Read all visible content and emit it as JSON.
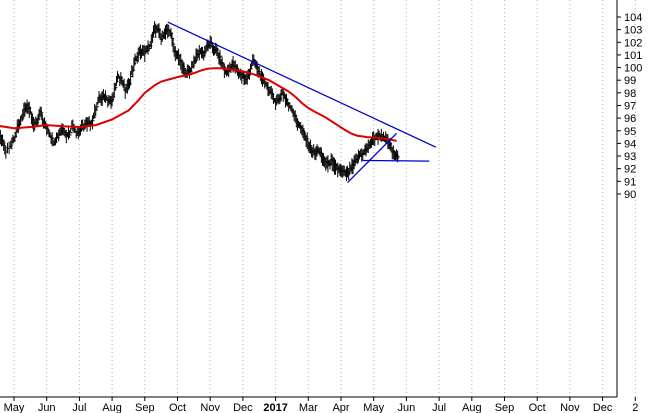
{
  "chart_data": {
    "type": "line",
    "title": "",
    "xlabel": "",
    "ylabel": "",
    "ylim": [
      89.5,
      104.8
    ],
    "grid": "vertical dotted lines at month boundaries",
    "y_ticks": [
      "90",
      "91",
      "92",
      "93",
      "94",
      "95",
      "96",
      "97",
      "98",
      "99",
      "100",
      "101",
      "102",
      "103",
      "104"
    ],
    "x_ticks": [
      "May",
      "Jun",
      "Jul",
      "Aug",
      "Sep",
      "Oct",
      "Nov",
      "Dec",
      "2017",
      "Mar",
      "Apr",
      "May",
      "Jun",
      "Jul",
      "Aug",
      "Sep",
      "Oct",
      "Nov",
      "Dec",
      "2"
    ],
    "x_ticks_bold": [
      false,
      false,
      false,
      false,
      false,
      false,
      false,
      false,
      true,
      false,
      false,
      false,
      false,
      false,
      false,
      false,
      false,
      false,
      false,
      false
    ],
    "colors": {
      "price": "#000000",
      "moving_average": "#dd0000",
      "trendlines": "#0000cc",
      "grid": "#b0b0b0",
      "axis": "#000000"
    },
    "series": [
      {
        "style": "price bars",
        "points": [
          [
            -1.4,
            94.0
          ],
          [
            -1.2,
            95.1
          ],
          [
            -1.0,
            95.5
          ],
          [
            -0.8,
            95.0
          ],
          [
            -0.6,
            95.3
          ],
          [
            -0.45,
            94.5
          ],
          [
            -0.35,
            94.2
          ],
          [
            -0.25,
            93.3
          ],
          [
            -0.1,
            94.0
          ],
          [
            0.0,
            94.4
          ],
          [
            0.1,
            95.2
          ],
          [
            0.2,
            95.8
          ],
          [
            0.3,
            96.5
          ],
          [
            0.4,
            96.9
          ],
          [
            0.5,
            96.5
          ],
          [
            0.6,
            95.5
          ],
          [
            0.7,
            95.8
          ],
          [
            0.8,
            96.7
          ],
          [
            0.9,
            95.5
          ],
          [
            1.0,
            95.3
          ],
          [
            1.1,
            94.7
          ],
          [
            1.2,
            94.1
          ],
          [
            1.3,
            94.4
          ],
          [
            1.4,
            94.9
          ],
          [
            1.5,
            95.3
          ],
          [
            1.6,
            94.6
          ],
          [
            1.7,
            94.8
          ],
          [
            1.8,
            95.5
          ],
          [
            1.9,
            94.8
          ],
          [
            2.0,
            95.0
          ],
          [
            2.1,
            95.3
          ],
          [
            2.2,
            95.5
          ],
          [
            2.3,
            95.5
          ],
          [
            2.4,
            95.8
          ],
          [
            2.5,
            96.8
          ],
          [
            2.6,
            97.5
          ],
          [
            2.7,
            97.6
          ],
          [
            2.8,
            97.7
          ],
          [
            2.9,
            97.4
          ],
          [
            3.0,
            97.3
          ],
          [
            3.1,
            98.5
          ],
          [
            3.2,
            99.3
          ],
          [
            3.3,
            99.0
          ],
          [
            3.4,
            98.2
          ],
          [
            3.5,
            98.6
          ],
          [
            3.6,
            99.6
          ],
          [
            3.7,
            100.5
          ],
          [
            3.8,
            101.0
          ],
          [
            3.9,
            101.3
          ],
          [
            4.0,
            101.1
          ],
          [
            4.1,
            101.5
          ],
          [
            4.2,
            102.1
          ],
          [
            4.3,
            103.0
          ],
          [
            4.4,
            103.1
          ],
          [
            4.5,
            102.4
          ],
          [
            4.6,
            102.7
          ],
          [
            4.7,
            103.0
          ],
          [
            4.8,
            102.6
          ],
          [
            4.9,
            101.3
          ],
          [
            5.0,
            101.0
          ],
          [
            5.1,
            100.4
          ],
          [
            5.2,
            99.8
          ],
          [
            5.3,
            99.6
          ],
          [
            5.4,
            99.8
          ],
          [
            5.5,
            100.5
          ],
          [
            5.6,
            101.0
          ],
          [
            5.7,
            101.3
          ],
          [
            5.8,
            101.1
          ],
          [
            5.9,
            101.6
          ],
          [
            6.0,
            101.9
          ],
          [
            6.1,
            101.5
          ],
          [
            6.2,
            101.3
          ],
          [
            6.3,
            100.7
          ],
          [
            6.4,
            100.0
          ],
          [
            6.5,
            99.5
          ],
          [
            6.6,
            100.0
          ],
          [
            6.7,
            100.3
          ],
          [
            6.8,
            99.8
          ],
          [
            6.9,
            99.5
          ],
          [
            7.0,
            99.3
          ],
          [
            7.1,
            99.0
          ],
          [
            7.2,
            99.7
          ],
          [
            7.3,
            100.5
          ],
          [
            7.4,
            100.1
          ],
          [
            7.5,
            99.6
          ],
          [
            7.6,
            99.0
          ],
          [
            7.7,
            98.7
          ],
          [
            7.8,
            98.2
          ],
          [
            7.9,
            97.7
          ],
          [
            8.0,
            97.3
          ],
          [
            8.1,
            97.5
          ],
          [
            8.2,
            98.0
          ],
          [
            8.3,
            97.5
          ],
          [
            8.4,
            97.0
          ],
          [
            8.5,
            96.7
          ],
          [
            8.6,
            96.0
          ],
          [
            8.7,
            95.5
          ],
          [
            8.8,
            95.0
          ],
          [
            8.9,
            94.5
          ],
          [
            9.0,
            94.0
          ],
          [
            9.1,
            93.5
          ],
          [
            9.2,
            93.2
          ],
          [
            9.3,
            93.5
          ],
          [
            9.4,
            93.0
          ],
          [
            9.5,
            92.6
          ],
          [
            9.6,
            92.4
          ],
          [
            9.7,
            92.6
          ],
          [
            9.8,
            92.2
          ],
          [
            9.9,
            92.0
          ],
          [
            10.0,
            91.8
          ],
          [
            10.1,
            91.6
          ],
          [
            10.2,
            91.6
          ],
          [
            10.3,
            92.0
          ],
          [
            10.4,
            92.4
          ],
          [
            10.5,
            92.8
          ],
          [
            10.6,
            93.1
          ],
          [
            10.7,
            93.3
          ],
          [
            10.8,
            93.6
          ],
          [
            10.9,
            94.0
          ],
          [
            11.0,
            94.4
          ],
          [
            11.1,
            94.5
          ],
          [
            11.2,
            94.6
          ],
          [
            11.3,
            94.5
          ],
          [
            11.4,
            94.2
          ],
          [
            11.5,
            93.8
          ],
          [
            11.6,
            93.2
          ],
          [
            11.7,
            92.9
          ],
          [
            11.75,
            92.7
          ]
        ]
      },
      {
        "style": "moving average",
        "points": [
          [
            -1.4,
            95.8
          ],
          [
            -1.0,
            95.7
          ],
          [
            -0.5,
            95.4
          ],
          [
            0.0,
            95.2
          ],
          [
            0.5,
            95.3
          ],
          [
            1.0,
            95.45
          ],
          [
            1.5,
            95.35
          ],
          [
            2.0,
            95.3
          ],
          [
            2.5,
            95.45
          ],
          [
            3.0,
            95.9
          ],
          [
            3.5,
            96.6
          ],
          [
            3.8,
            97.4
          ],
          [
            4.0,
            98.0
          ],
          [
            4.3,
            98.6
          ],
          [
            4.5,
            98.9
          ],
          [
            4.8,
            99.1
          ],
          [
            5.0,
            99.25
          ],
          [
            5.3,
            99.4
          ],
          [
            5.5,
            99.55
          ],
          [
            5.7,
            99.75
          ],
          [
            5.9,
            99.9
          ],
          [
            6.1,
            99.95
          ],
          [
            6.3,
            99.95
          ],
          [
            6.5,
            99.9
          ],
          [
            6.8,
            99.8
          ],
          [
            7.0,
            99.7
          ],
          [
            7.3,
            99.5
          ],
          [
            7.5,
            99.3
          ],
          [
            7.8,
            99.0
          ],
          [
            8.0,
            98.7
          ],
          [
            8.2,
            98.4
          ],
          [
            8.4,
            98.1
          ],
          [
            8.6,
            97.7
          ],
          [
            8.8,
            97.2
          ],
          [
            9.0,
            96.8
          ],
          [
            9.2,
            96.5
          ],
          [
            9.5,
            96.1
          ],
          [
            9.8,
            95.6
          ],
          [
            10.1,
            95.1
          ],
          [
            10.3,
            94.8
          ],
          [
            10.5,
            94.6
          ],
          [
            10.8,
            94.5
          ],
          [
            11.1,
            94.45
          ],
          [
            11.4,
            94.35
          ],
          [
            11.6,
            94.25
          ],
          [
            11.7,
            94.2
          ]
        ]
      },
      {
        "style": "trendline",
        "points": [
          [
            4.7,
            103.6
          ],
          [
            12.9,
            93.7
          ]
        ]
      },
      {
        "style": "trendline",
        "points": [
          [
            10.2,
            90.9
          ],
          [
            11.7,
            94.8
          ]
        ]
      },
      {
        "style": "trendline",
        "points": [
          [
            10.65,
            92.65
          ],
          [
            12.7,
            92.6
          ]
        ]
      }
    ]
  }
}
